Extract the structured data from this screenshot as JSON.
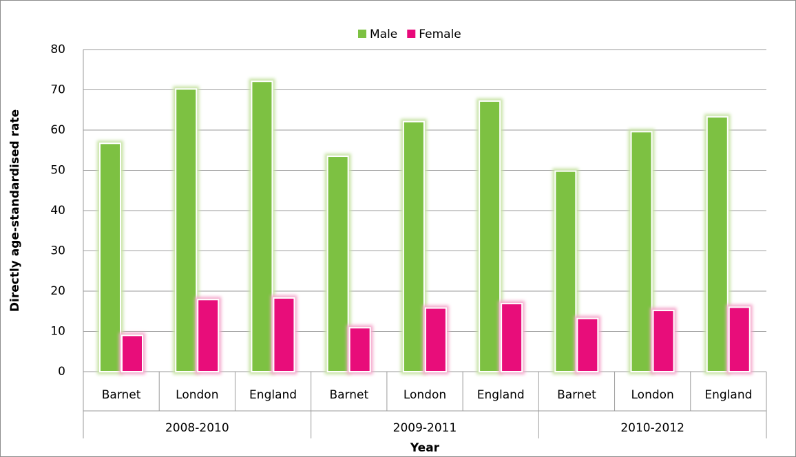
{
  "chart_data": {
    "type": "bar",
    "categories": [
      "Barnet",
      "London",
      "England",
      "Barnet",
      "London",
      "England",
      "Barnet",
      "London",
      "England"
    ],
    "groups": [
      "2008-2010",
      "2009-2011",
      "2010-2012"
    ],
    "series": [
      {
        "name": "Male",
        "color": "#7dc142",
        "values": [
          56.7,
          70.2,
          72.1,
          53.5,
          62.1,
          67.2,
          49.8,
          59.6,
          63.3
        ]
      },
      {
        "name": "Female",
        "color": "#e8097a",
        "values": [
          9.0,
          17.9,
          18.3,
          10.9,
          15.8,
          16.9,
          13.2,
          15.2,
          16.0
        ]
      }
    ],
    "ylim": [
      0,
      80
    ],
    "yticks": [
      0,
      10,
      20,
      30,
      40,
      50,
      60,
      70,
      80
    ],
    "ylabel": "Directly age-standardised rate",
    "xlabel": "Year",
    "grid": true,
    "legend": "top"
  }
}
